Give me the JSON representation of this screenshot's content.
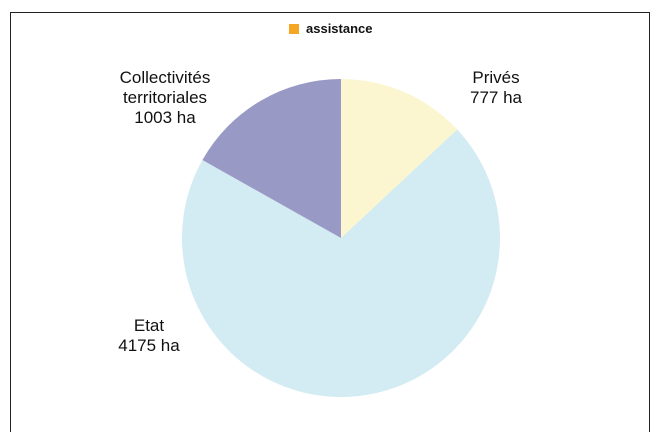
{
  "chart_data": {
    "type": "pie",
    "legend": {
      "label": "assistance",
      "color": "#f5a623",
      "position": "top"
    },
    "slices": [
      {
        "label": "Privés",
        "value": 777,
        "value_text": "777 ha",
        "color": "#fbf6cf"
      },
      {
        "label": "Etat",
        "value": 4175,
        "value_text": "4175 ha",
        "color": "#d3ebf2"
      },
      {
        "label": "Collectivités territoriales",
        "value": 1003,
        "value_text": "1003 ha",
        "color": "#9999c6"
      }
    ]
  }
}
